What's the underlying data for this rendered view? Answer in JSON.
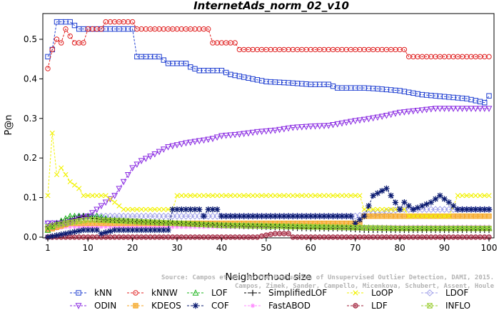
{
  "chart_data": {
    "type": "line",
    "title": "InternetAds_norm_02_v10",
    "xlabel": "Neighborhood size",
    "ylabel": "P@n",
    "xlim": [
      0,
      100
    ],
    "ylim": [
      0,
      0.55
    ],
    "x_ticks": [
      "1",
      "10",
      "20",
      "30",
      "40",
      "50",
      "60",
      "70",
      "80",
      "90",
      "100"
    ],
    "y_ticks": [
      "0.0",
      "0.1",
      "0.2",
      "0.3",
      "0.4",
      "0.5"
    ],
    "grid": false,
    "legend_position": "bottom",
    "watermark": [
      "Source: Campos et al. On the Evaluation of Unsupervised Outlier Detection, DAMI, 2015.",
      "Campos, Zimek, Sander, Campello, Micenkova, Schubert, Assent, Houle"
    ],
    "series": [
      {
        "name": "kNN",
        "color": "#1f3fd1",
        "marker": "square",
        "points": [
          [
            1,
            0.456
          ],
          [
            2,
            0.474
          ],
          [
            3,
            0.544
          ],
          [
            6,
            0.544
          ],
          [
            8,
            0.526
          ],
          [
            10,
            0.526
          ],
          [
            13,
            0.526
          ],
          [
            20,
            0.526
          ],
          [
            21,
            0.456
          ],
          [
            26,
            0.456
          ],
          [
            28,
            0.439
          ],
          [
            32,
            0.439
          ],
          [
            33,
            0.43
          ],
          [
            35,
            0.421
          ],
          [
            40,
            0.421
          ],
          [
            42,
            0.411
          ],
          [
            46,
            0.402
          ],
          [
            50,
            0.393
          ],
          [
            55,
            0.39
          ],
          [
            60,
            0.386
          ],
          [
            64,
            0.386
          ],
          [
            66,
            0.377
          ],
          [
            72,
            0.377
          ],
          [
            75,
            0.375
          ],
          [
            80,
            0.37
          ],
          [
            85,
            0.36
          ],
          [
            90,
            0.355
          ],
          [
            95,
            0.35
          ],
          [
            99,
            0.34
          ],
          [
            100,
            0.357
          ]
        ]
      },
      {
        "name": "kNNW",
        "color": "#e02020",
        "marker": "circle",
        "points": [
          [
            1,
            0.426
          ],
          [
            2,
            0.474
          ],
          [
            3,
            0.5
          ],
          [
            4,
            0.491
          ],
          [
            5,
            0.526
          ],
          [
            6,
            0.508
          ],
          [
            7,
            0.491
          ],
          [
            9,
            0.491
          ],
          [
            10,
            0.526
          ],
          [
            13,
            0.526
          ],
          [
            14,
            0.544
          ],
          [
            20,
            0.544
          ],
          [
            21,
            0.526
          ],
          [
            37,
            0.526
          ],
          [
            38,
            0.491
          ],
          [
            43,
            0.491
          ],
          [
            44,
            0.474
          ],
          [
            81,
            0.474
          ],
          [
            82,
            0.456
          ],
          [
            100,
            0.456
          ]
        ]
      },
      {
        "name": "LOF",
        "color": "#19b319",
        "marker": "triangle-up",
        "points": [
          [
            1,
            0.018
          ],
          [
            3,
            0.035
          ],
          [
            6,
            0.053
          ],
          [
            12,
            0.053
          ],
          [
            15,
            0.044
          ],
          [
            20,
            0.04
          ],
          [
            30,
            0.035
          ],
          [
            40,
            0.03
          ],
          [
            50,
            0.028
          ],
          [
            60,
            0.026
          ],
          [
            70,
            0.024
          ],
          [
            80,
            0.022
          ],
          [
            90,
            0.022
          ],
          [
            100,
            0.022
          ]
        ]
      },
      {
        "name": "SimplifiedLOF",
        "color": "#000000",
        "marker": "plus",
        "points": [
          [
            1,
            0.026
          ],
          [
            3,
            0.035
          ],
          [
            6,
            0.044
          ],
          [
            9,
            0.053
          ],
          [
            13,
            0.044
          ],
          [
            20,
            0.04
          ],
          [
            30,
            0.035
          ],
          [
            40,
            0.03
          ],
          [
            50,
            0.026
          ],
          [
            60,
            0.022
          ],
          [
            68,
            0.022
          ],
          [
            72,
            0.018
          ],
          [
            80,
            0.018
          ],
          [
            90,
            0.018
          ],
          [
            100,
            0.018
          ]
        ]
      },
      {
        "name": "LoOP",
        "color": "#f2f200",
        "marker": "x",
        "points": [
          [
            1,
            0.105
          ],
          [
            2,
            0.263
          ],
          [
            3,
            0.158
          ],
          [
            4,
            0.175
          ],
          [
            5,
            0.158
          ],
          [
            6,
            0.14
          ],
          [
            8,
            0.123
          ],
          [
            9,
            0.105
          ],
          [
            14,
            0.105
          ],
          [
            16,
            0.088
          ],
          [
            18,
            0.07
          ],
          [
            29,
            0.07
          ],
          [
            30,
            0.105
          ],
          [
            71,
            0.105
          ],
          [
            72,
            0.07
          ],
          [
            81,
            0.07
          ],
          [
            82,
            0.053
          ],
          [
            91,
            0.053
          ],
          [
            93,
            0.105
          ],
          [
            100,
            0.105
          ]
        ]
      },
      {
        "name": "LDOF",
        "color": "#9e9ee8",
        "marker": "diamond",
        "points": [
          [
            1,
            0.035
          ],
          [
            5,
            0.035
          ],
          [
            8,
            0.053
          ],
          [
            10,
            0.053
          ],
          [
            20,
            0.053
          ],
          [
            30,
            0.053
          ],
          [
            40,
            0.053
          ],
          [
            50,
            0.053
          ],
          [
            60,
            0.053
          ],
          [
            70,
            0.053
          ],
          [
            80,
            0.07
          ],
          [
            90,
            0.07
          ],
          [
            100,
            0.07
          ]
        ]
      },
      {
        "name": "ODIN",
        "color": "#8a2be2",
        "marker": "triangle-down",
        "points": [
          [
            1,
            0.035
          ],
          [
            5,
            0.035
          ],
          [
            10,
            0.053
          ],
          [
            12,
            0.07
          ],
          [
            14,
            0.088
          ],
          [
            16,
            0.105
          ],
          [
            18,
            0.14
          ],
          [
            20,
            0.175
          ],
          [
            22,
            0.193
          ],
          [
            25,
            0.21
          ],
          [
            28,
            0.228
          ],
          [
            32,
            0.238
          ],
          [
            36,
            0.245
          ],
          [
            38,
            0.249
          ],
          [
            40,
            0.256
          ],
          [
            44,
            0.26
          ],
          [
            48,
            0.266
          ],
          [
            52,
            0.27
          ],
          [
            56,
            0.277
          ],
          [
            60,
            0.28
          ],
          [
            64,
            0.282
          ],
          [
            66,
            0.286
          ],
          [
            68,
            0.29
          ],
          [
            70,
            0.294
          ],
          [
            73,
            0.299
          ],
          [
            76,
            0.305
          ],
          [
            80,
            0.315
          ],
          [
            84,
            0.32
          ],
          [
            88,
            0.325
          ],
          [
            92,
            0.325
          ],
          [
            96,
            0.325
          ],
          [
            100,
            0.325
          ]
        ]
      },
      {
        "name": "KDEOS",
        "color": "#f5a623",
        "marker": "square-filled",
        "points": [
          [
            1,
            0.018
          ],
          [
            6,
            0.035
          ],
          [
            10,
            0.035
          ],
          [
            20,
            0.035
          ],
          [
            30,
            0.035
          ],
          [
            40,
            0.035
          ],
          [
            50,
            0.035
          ],
          [
            60,
            0.035
          ],
          [
            71,
            0.035
          ],
          [
            72,
            0.053
          ],
          [
            100,
            0.053
          ]
        ]
      },
      {
        "name": "COF",
        "color": "#0a1a70",
        "marker": "asterisk",
        "points": [
          [
            1,
            0.0
          ],
          [
            5,
            0.009
          ],
          [
            9,
            0.018
          ],
          [
            12,
            0.018
          ],
          [
            13,
            0.009
          ],
          [
            16,
            0.018
          ],
          [
            28,
            0.018
          ],
          [
            29,
            0.07
          ],
          [
            35,
            0.07
          ],
          [
            36,
            0.053
          ],
          [
            37,
            0.07
          ],
          [
            39,
            0.07
          ],
          [
            40,
            0.053
          ],
          [
            69,
            0.053
          ],
          [
            70,
            0.035
          ],
          [
            72,
            0.053
          ],
          [
            74,
            0.105
          ],
          [
            77,
            0.123
          ],
          [
            78,
            0.105
          ],
          [
            80,
            0.07
          ],
          [
            81,
            0.088
          ],
          [
            83,
            0.07
          ],
          [
            87,
            0.088
          ],
          [
            89,
            0.105
          ],
          [
            91,
            0.088
          ],
          [
            93,
            0.07
          ],
          [
            100,
            0.07
          ]
        ]
      },
      {
        "name": "FastABOD",
        "color": "#ff88ff",
        "marker": "star",
        "points": [
          [
            1,
            0.018
          ],
          [
            5,
            0.026
          ],
          [
            10,
            0.026
          ],
          [
            20,
            0.026
          ],
          [
            40,
            0.026
          ],
          [
            60,
            0.026
          ],
          [
            80,
            0.026
          ],
          [
            100,
            0.026
          ]
        ]
      },
      {
        "name": "LDF",
        "color": "#a0203a",
        "marker": "circle-filled",
        "points": [
          [
            1,
            0.0
          ],
          [
            5,
            0.0
          ],
          [
            10,
            0.0
          ],
          [
            20,
            0.0
          ],
          [
            30,
            0.0
          ],
          [
            40,
            0.0
          ],
          [
            48,
            0.0
          ],
          [
            50,
            0.005
          ],
          [
            52,
            0.009
          ],
          [
            55,
            0.009
          ],
          [
            56,
            0.0
          ],
          [
            70,
            0.0
          ],
          [
            80,
            0.0
          ],
          [
            90,
            0.0
          ],
          [
            100,
            0.0
          ]
        ]
      },
      {
        "name": "INFLO",
        "color": "#9acd32",
        "marker": "box-x",
        "points": [
          [
            1,
            0.026
          ],
          [
            5,
            0.035
          ],
          [
            10,
            0.044
          ],
          [
            20,
            0.04
          ],
          [
            30,
            0.035
          ],
          [
            40,
            0.03
          ],
          [
            50,
            0.028
          ],
          [
            60,
            0.026
          ],
          [
            70,
            0.024
          ],
          [
            80,
            0.022
          ],
          [
            90,
            0.022
          ],
          [
            100,
            0.022
          ]
        ]
      }
    ]
  }
}
